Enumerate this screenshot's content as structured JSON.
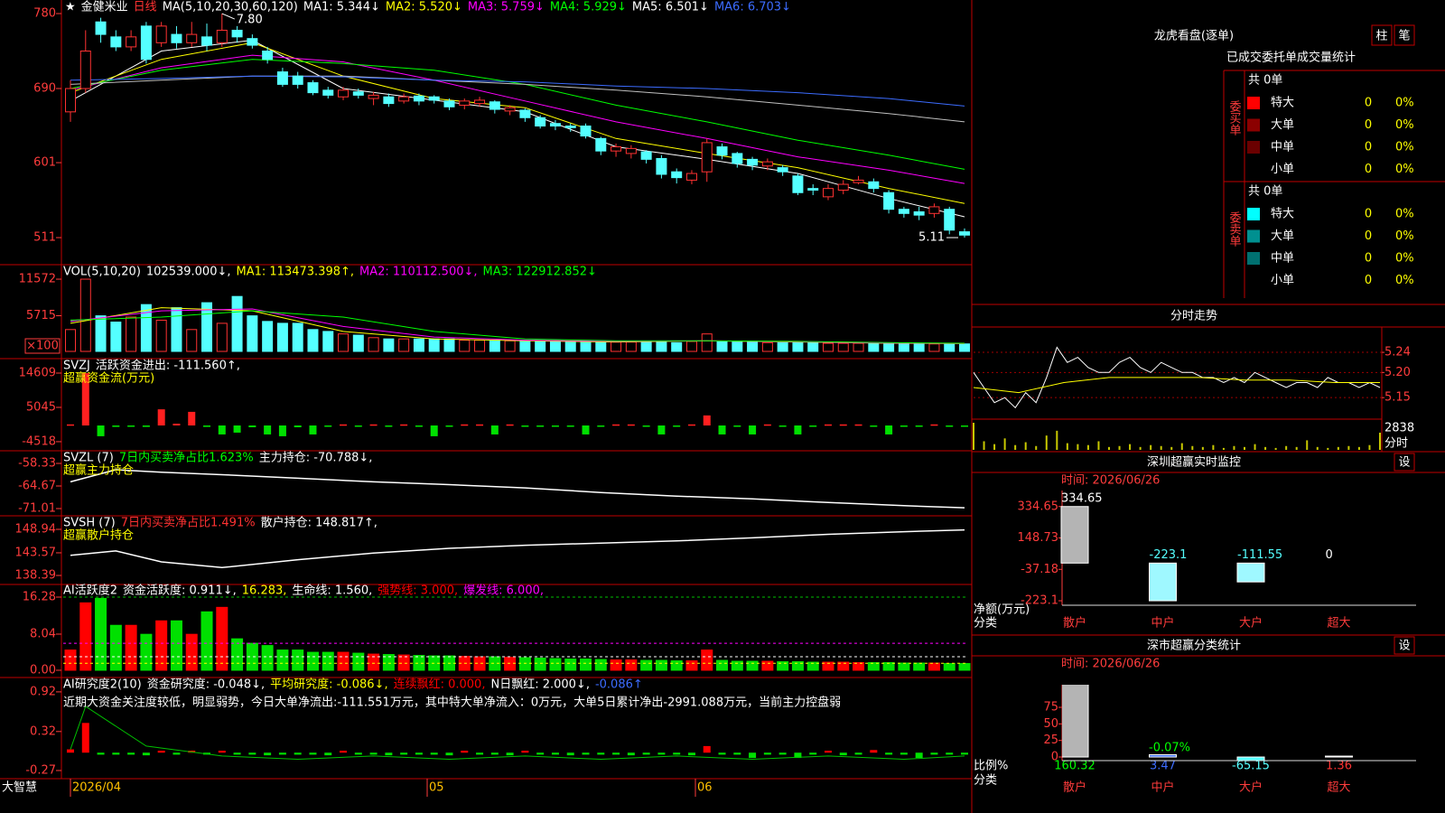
{
  "kline": {
    "header": [
      {
        "text": "★",
        "color": "#ffffff"
      },
      {
        "text": "金健米业",
        "color": "#ffffff"
      },
      {
        "text": "日线",
        "color": "#ff3232"
      },
      {
        "text": "MA(5,10,20,30,60,120)",
        "color": "#ffffff"
      },
      {
        "text": "MA1: 5.344↓",
        "color": "#ffffff"
      },
      {
        "text": "MA2: 5.520↓",
        "color": "#ffff00"
      },
      {
        "text": "MA3: 5.759↓",
        "color": "#ff00ff"
      },
      {
        "text": "MA4: 5.929↓",
        "color": "#00ff00"
      },
      {
        "text": "MA5: 6.501↓",
        "color": "#ffffff"
      },
      {
        "text": "MA6: 6.703↓",
        "color": "#3c6cff"
      }
    ],
    "ylim": [
      478.5,
      796.3
    ],
    "yticks": [
      511,
      601,
      690,
      780
    ],
    "up_color": "#ff3232",
    "down_color": "#54ffff",
    "open": [
      662,
      690,
      770,
      752,
      740,
      765,
      745,
      755,
      745,
      752,
      745,
      760,
      750,
      735,
      710,
      705,
      697,
      688,
      680,
      686,
      678,
      680,
      675,
      681,
      680,
      675,
      670,
      672,
      674,
      663,
      664,
      655,
      648,
      645,
      645,
      630,
      615,
      612,
      614,
      606,
      590,
      580,
      590,
      620,
      612,
      605,
      597,
      595,
      585,
      570,
      560,
      568,
      577,
      578,
      565,
      545,
      542,
      540,
      545,
      518
    ],
    "close": [
      690,
      735,
      755,
      740,
      752,
      725,
      765,
      745,
      755,
      742,
      760,
      752,
      742,
      725,
      695,
      695,
      685,
      682,
      688,
      682,
      682,
      672,
      680,
      675,
      676,
      668,
      675,
      676,
      665,
      667,
      655,
      645,
      645,
      643,
      633,
      615,
      620,
      618,
      605,
      587,
      583,
      588,
      625,
      610,
      600,
      598,
      602,
      590,
      565,
      568,
      570,
      575,
      580,
      570,
      545,
      540,
      538,
      548,
      520,
      514
    ],
    "high": [
      700,
      760,
      775,
      760,
      760,
      770,
      770,
      765,
      770,
      768,
      780,
      765,
      755,
      740,
      715,
      710,
      700,
      692,
      692,
      690,
      686,
      684,
      684,
      684,
      682,
      678,
      678,
      680,
      676,
      670,
      666,
      658,
      652,
      648,
      648,
      632,
      624,
      622,
      616,
      610,
      594,
      592,
      630,
      624,
      614,
      608,
      606,
      598,
      588,
      575,
      575,
      580,
      585,
      582,
      568,
      548,
      548,
      552,
      548,
      522
    ],
    "low": [
      650,
      685,
      745,
      735,
      735,
      720,
      740,
      738,
      740,
      735,
      740,
      745,
      738,
      720,
      692,
      690,
      682,
      678,
      676,
      678,
      670,
      668,
      672,
      670,
      672,
      664,
      665,
      668,
      660,
      658,
      650,
      642,
      640,
      638,
      630,
      610,
      608,
      606,
      600,
      582,
      576,
      575,
      578,
      605,
      595,
      592,
      592,
      585,
      562,
      562,
      556,
      563,
      575,
      565,
      540,
      535,
      532,
      535,
      515,
      511
    ],
    "annotations": [
      {
        "label": "7.80",
        "value": 780
      },
      {
        "label": "5.11",
        "value": 511
      }
    ],
    "ma_x": [
      0,
      6,
      12,
      18,
      24,
      30,
      36,
      42,
      48,
      54,
      59
    ],
    "ma": [
      {
        "color": "#ffffff",
        "values": [
          675,
          735,
          748,
          690,
          676,
          662,
          620,
          605,
          588,
          558,
          536
        ]
      },
      {
        "color": "#ffff00",
        "values": [
          685,
          725,
          745,
          705,
          678,
          667,
          630,
          612,
          595,
          570,
          552
        ]
      },
      {
        "color": "#ff00ff",
        "values": [
          688,
          715,
          730,
          722,
          700,
          675,
          650,
          630,
          608,
          592,
          576
        ]
      },
      {
        "color": "#00ff00",
        "values": [
          690,
          712,
          725,
          720,
          712,
          695,
          670,
          650,
          628,
          610,
          593
        ]
      },
      {
        "color": "#c0c0c0",
        "values": [
          695,
          700,
          705,
          705,
          700,
          695,
          688,
          680,
          670,
          660,
          650
        ]
      },
      {
        "color": "#3c6cff",
        "values": [
          700,
          702,
          705,
          704,
          700,
          698,
          693,
          690,
          685,
          678,
          669
        ]
      }
    ]
  },
  "volume": {
    "header": [
      {
        "text": "VOL(5,10,20)",
        "color": "#ffffff"
      },
      {
        "text": "102539.000↓,",
        "color": "#ffffff"
      },
      {
        "text": "MA1: 113473.398↑,",
        "color": "#ffff00"
      },
      {
        "text": "MA2: 110112.500↓,",
        "color": "#ff00ff"
      },
      {
        "text": "MA3: 122912.852↓",
        "color": "#00ff00"
      }
    ],
    "ylim": [
      -868,
      13603
    ],
    "yticks": [
      5715,
      11572
    ],
    "unit": "×100",
    "values": [
      3500,
      11572,
      5700,
      4700,
      5500,
      7500,
      5000,
      7000,
      3500,
      7800,
      4500,
      8800,
      5700,
      4800,
      4500,
      4500,
      3500,
      3200,
      2800,
      2600,
      2200,
      2000,
      2000,
      2000,
      2000,
      2000,
      1800,
      1800,
      1800,
      1700,
      1700,
      1700,
      1600,
      1600,
      1600,
      1600,
      1500,
      1500,
      1500,
      1500,
      1400,
      1600,
      2800,
      1600,
      1500,
      1500,
      1400,
      1400,
      1500,
      1400,
      1300,
      1300,
      1300,
      1300,
      1300,
      1300,
      1200,
      1200,
      1300,
      1200
    ],
    "ma_x": [
      0,
      6,
      12,
      18,
      24,
      30,
      36,
      42,
      48,
      54,
      59
    ],
    "ma": [
      {
        "color": "#ffff00",
        "values": [
          4500,
          7000,
          6500,
          3200,
          2000,
          1700,
          1500,
          1700,
          1500,
          1300,
          1250
        ]
      },
      {
        "color": "#ff00ff",
        "values": [
          4800,
          6500,
          6800,
          4000,
          2300,
          1800,
          1600,
          1700,
          1550,
          1350,
          1280
        ]
      },
      {
        "color": "#00ff00",
        "values": [
          5000,
          5500,
          6500,
          5500,
          3200,
          2000,
          1700,
          1700,
          1600,
          1400,
          1300
        ]
      }
    ]
  },
  "svzj": {
    "header": [
      {
        "text": "SVZJ",
        "color": "#ffffff"
      },
      {
        "text": "活跃资金进出: -111.560↑,",
        "color": "#ffffff"
      }
    ],
    "subtitle": {
      "text": "超赢资金流(万元)",
      "color": "#ffff00"
    },
    "ylim": [
      -6549,
      18136
    ],
    "yticks": [
      -4518,
      5045,
      14609
    ],
    "pos_color": "#ff2020",
    "neg_color": "#00e000",
    "values": [
      300,
      14600,
      -3000,
      -400,
      -300,
      -400,
      4500,
      500,
      3800,
      -400,
      -2500,
      -2000,
      -500,
      -2500,
      -3000,
      -500,
      -2500,
      -300,
      300,
      -300,
      300,
      -300,
      300,
      -300,
      -3000,
      -300,
      300,
      300,
      -2500,
      300,
      -300,
      -300,
      -300,
      -300,
      -2500,
      -300,
      300,
      300,
      -300,
      -2500,
      -300,
      300,
      2800,
      -2500,
      -300,
      -2500,
      300,
      -300,
      -2500,
      -300,
      300,
      300,
      300,
      -300,
      -2500,
      -300,
      -300,
      300,
      -300,
      -300
    ]
  },
  "svzl": {
    "header": [
      {
        "text": "SVZL (7)",
        "color": "#ffffff"
      },
      {
        "text": "7日内买卖净占比1.623%",
        "color": "#00ff00"
      },
      {
        "text": "主力持仓: -70.788↓,",
        "color": "#ffffff"
      }
    ],
    "subtitle": {
      "text": "超赢主力持仓",
      "color": "#ffff00"
    },
    "ylim": [
      -72.53,
      -55.29
    ],
    "yticks": [
      -71.01,
      -64.67,
      -58.33
    ],
    "color": "#ffffff",
    "x": [
      0,
      3,
      6,
      10,
      15,
      20,
      25,
      30,
      35,
      40,
      45,
      50,
      55,
      59
    ],
    "values": [
      -63.5,
      -60.1,
      -60.8,
      -61.5,
      -62.5,
      -63.5,
      -64.3,
      -65.2,
      -66.5,
      -67.5,
      -68.3,
      -69.3,
      -70.2,
      -70.79
    ]
  },
  "svsh": {
    "header": [
      {
        "text": "SVSH (7)",
        "color": "#ffffff"
      },
      {
        "text": "7日内买卖净占比1.491%",
        "color": "#ff3232"
      },
      {
        "text": "散户持仓: 148.817↑,",
        "color": "#ffffff"
      }
    ],
    "subtitle": {
      "text": "超赢散户持仓",
      "color": "#ffff00"
    },
    "ylim": [
      136.74,
      151.63
    ],
    "yticks": [
      138.39,
      143.57,
      148.94
    ],
    "color": "#ffffff",
    "x": [
      0,
      3,
      6,
      10,
      15,
      20,
      25,
      30,
      35,
      40,
      45,
      50,
      55,
      59
    ],
    "values": [
      143,
      144,
      141.5,
      140.2,
      142,
      143.5,
      144.6,
      145.3,
      145.8,
      146.3,
      147,
      147.8,
      148.4,
      148.82
    ]
  },
  "activity": {
    "header": [
      {
        "text": "AI活跃度2",
        "color": "#ffffff"
      },
      {
        "text": "资金活跃度: 0.911↓,",
        "color": "#ffffff"
      },
      {
        "text": "16.283,",
        "color": "#ffff00",
        "value": 16.283,
        "line_color": "#00c000"
      },
      {
        "text": "生命线: 1.560,",
        "color": "#ffffff",
        "value": 1.56,
        "line_color": "#ffff00"
      },
      {
        "text": "强势线: 3.000,",
        "color": "#ff0000",
        "value": 3,
        "line_color": "#ffffff"
      },
      {
        "text": "爆发线: 6.000,",
        "color": "#ff00ff",
        "value": 6,
        "line_color": "#ff00ff"
      }
    ],
    "ylim": [
      -1.21,
      18.69
    ],
    "yticks": [
      {
        "value": 0,
        "label": "0.00"
      },
      8.04,
      16.28
    ],
    "up_color": "#ff0000",
    "down_color": "#00e000",
    "values": [
      4.5,
      15,
      16,
      10,
      10,
      8,
      11,
      11,
      8,
      13,
      14,
      7,
      6,
      5.5,
      4.5,
      4.5,
      4,
      4,
      4,
      3.8,
      3.6,
      3.5,
      3.4,
      3.3,
      3.2,
      3.2,
      3.1,
      3,
      3,
      2.9,
      2.8,
      2.7,
      2.6,
      2.5,
      2.5,
      2.4,
      2.3,
      2.3,
      2.2,
      2.2,
      2.1,
      2.1,
      4.5,
      2.2,
      2,
      2,
      2,
      1.9,
      1.9,
      1.8,
      1.8,
      1.8,
      1.7,
      1.7,
      1.7,
      1.6,
      1.6,
      1.6,
      1.5,
      1.5
    ]
  },
  "research": {
    "header": [
      {
        "text": "AI研究度2(10)",
        "color": "#ffffff"
      },
      {
        "text": "资金研究度: -0.048↓,",
        "color": "#ffffff"
      },
      {
        "text": "平均研究度: -0.086↓,",
        "color": "#ffff00"
      },
      {
        "text": "连续飘红: 0.000,",
        "color": "#ff0000"
      },
      {
        "text": "N日飘红: 2.000↓,",
        "color": "#ffffff"
      },
      {
        "text": "-0.086↑",
        "color": "#3c6cff"
      }
    ],
    "subtitle": {
      "text": "近期大资金关注度较低，明显弱势，今日大单净流出:-111.551万元，其中特大单净流入：0万元，大单5日累计净出-2991.088万元，当前主力控盘弱",
      "color": "#ffffff"
    },
    "ylim": [
      -0.366,
      1.11
    ],
    "yticks": [
      -0.27,
      0.32,
      0.92
    ],
    "pos_color": "#ff0000",
    "neg_color": "#00e000",
    "values": [
      0.05,
      0.45,
      -0.03,
      -0.03,
      -0.03,
      -0.04,
      0.03,
      -0.03,
      0.03,
      -0.03,
      0.03,
      -0.03,
      -0.03,
      -0.04,
      -0.03,
      -0.03,
      -0.03,
      -0.04,
      0.03,
      -0.03,
      -0.03,
      -0.04,
      -0.03,
      -0.03,
      -0.03,
      -0.04,
      0.03,
      -0.03,
      -0.03,
      -0.04,
      0.03,
      -0.03,
      -0.03,
      -0.04,
      -0.03,
      -0.03,
      -0.03,
      -0.04,
      -0.03,
      -0.03,
      -0.03,
      -0.04,
      0.1,
      -0.03,
      -0.03,
      -0.08,
      -0.03,
      -0.03,
      -0.08,
      -0.03,
      0.03,
      -0.04,
      -0.03,
      0.04,
      -0.03,
      -0.03,
      -0.08,
      -0.03,
      -0.03,
      -0.03
    ],
    "line": {
      "color": "#00c000",
      "x": [
        0,
        1,
        5,
        10,
        15,
        20,
        25,
        30,
        35,
        40,
        45,
        50,
        55,
        59
      ],
      "values": [
        0.05,
        0.7,
        0.1,
        -0.05,
        -0.1,
        -0.05,
        -0.1,
        -0.05,
        -0.1,
        -0.05,
        -0.1,
        -0.05,
        -0.1,
        -0.05
      ]
    }
  },
  "footer": {
    "brand": "大智慧",
    "dates": [
      "2026/04",
      "05",
      "06"
    ]
  },
  "order_stats": {
    "title": "龙虎看盘(逐单)",
    "buttons": [
      "柱",
      "笔"
    ],
    "subtitle": "已成交委托单成交量统计",
    "buy": {
      "total": "共 0单",
      "label": "委买单",
      "rows": [
        {
          "name": "特大",
          "color": "#ff0000",
          "count": "0",
          "pct": "0%"
        },
        {
          "name": "大单",
          "color": "#8b0000",
          "count": "0",
          "pct": "0%"
        },
        {
          "name": "中单",
          "color": "#6a0000",
          "count": "0",
          "pct": "0%"
        },
        {
          "name": "小单",
          "color": "#000000",
          "count": "0",
          "pct": "0%"
        }
      ]
    },
    "sell": {
      "total": "共 0单",
      "label": "委卖单",
      "rows": [
        {
          "name": "特大",
          "color": "#00ffff",
          "count": "0",
          "pct": "0%"
        },
        {
          "name": "大单",
          "color": "#009090",
          "count": "0",
          "pct": "0%"
        },
        {
          "name": "中单",
          "color": "#007070",
          "count": "0",
          "pct": "0%"
        },
        {
          "name": "小单",
          "color": "#000000",
          "count": "0",
          "pct": "0%"
        }
      ]
    }
  },
  "intraday": {
    "title": "分时走势",
    "ylim": [
      5.109,
      5.285
    ],
    "yticks": [
      5.15,
      {
        "value": 5.2,
        "label": "5.20"
      },
      5.24
    ],
    "price_color": "#ffffff",
    "avg_color": "#ffff00",
    "price": [
      5.2,
      5.17,
      5.14,
      5.15,
      5.13,
      5.16,
      5.14,
      5.19,
      5.25,
      5.22,
      5.23,
      5.21,
      5.2,
      5.2,
      5.22,
      5.23,
      5.21,
      5.2,
      5.22,
      5.21,
      5.2,
      5.2,
      5.19,
      5.19,
      5.18,
      5.19,
      5.18,
      5.2,
      5.19,
      5.18,
      5.17,
      5.18,
      5.18,
      5.17,
      5.19,
      5.18,
      5.18,
      5.17,
      5.18,
      5.17
    ],
    "avg": [
      5.17,
      5.16,
      5.18,
      5.19,
      5.19,
      5.19,
      5.185,
      5.185,
      5.18,
      5.18
    ],
    "vol_ylim": [
      0,
      2838
    ],
    "vol_ticks": [
      2838
    ],
    "vol_label": "分时",
    "vol_color": "#c8c800",
    "volume": [
      2838,
      900,
      600,
      1200,
      500,
      800,
      400,
      1500,
      2000,
      700,
      600,
      500,
      900,
      300,
      400,
      600,
      300,
      500,
      400,
      300,
      700,
      400,
      300,
      500,
      200,
      400,
      300,
      600,
      300,
      200,
      400,
      300,
      1000,
      300,
      200,
      300,
      400,
      300,
      500,
      1800
    ]
  },
  "monitor": {
    "title": "深圳超赢实时监控",
    "button": "设",
    "time": "时间: 2026/06/26",
    "ylim": [
      -238.9,
      418.9
    ],
    "yticks": [
      -223.1,
      -37.18,
      148.73,
      334.65
    ],
    "categories": [
      "散户",
      "中户",
      "大户",
      "超大"
    ],
    "values": [
      334.65,
      -223.1,
      -111.55,
      0
    ],
    "pos_color": "#b4b4b4",
    "neg_color": "#9ff8ff",
    "value_label_colors": [
      "#ffffff",
      "#54ffff",
      "#54ffff",
      "#ffffff"
    ],
    "ylabel": "净额(万元)",
    "xlabel": "分类"
  },
  "classify": {
    "title": "深市超赢分类统计",
    "button": "设",
    "time": "时间: 2026/06/26",
    "ylim": [
      -2.7,
      106.4
    ],
    "yticks": [
      0,
      25,
      50,
      75
    ],
    "categories": [
      "散户",
      "中户",
      "大户",
      "超大"
    ],
    "values": [
      160.32,
      3.47,
      -65.15,
      1.36
    ],
    "bar_colors": [
      "#b4b4b4",
      "#3c6cff",
      "#54ffff",
      "#ff3232"
    ],
    "value_label_colors": [
      "#00ff00",
      "#3c6cff",
      "#54ffff",
      "#ff3232"
    ],
    "note": "-0.07%",
    "ylabel": "比例%",
    "xlabel": "分类"
  }
}
